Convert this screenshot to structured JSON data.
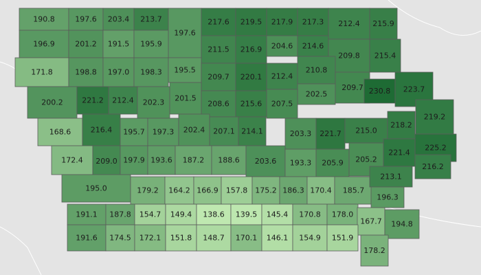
{
  "counties": [
    {
      "v": "190.8"
    },
    {
      "v": "197.6"
    },
    {
      "v": "203.4"
    },
    {
      "v": "213.7"
    },
    {
      "v": "197.6"
    },
    {
      "v": "217.6"
    },
    {
      "v": "219.5"
    },
    {
      "v": "217.9"
    },
    {
      "v": "217.3"
    },
    {
      "v": "212.4"
    },
    {
      "v": "215.9"
    },
    {
      "v": "196.9"
    },
    {
      "v": "201.2"
    },
    {
      "v": "191.5"
    },
    {
      "v": "195.9"
    },
    {
      "v": "211.5"
    },
    {
      "v": "216.9"
    },
    {
      "v": "204.6"
    },
    {
      "v": "214.6"
    },
    {
      "v": "209.8"
    },
    {
      "v": "215.4"
    },
    {
      "v": "171.8"
    },
    {
      "v": "198.8"
    },
    {
      "v": "197.0"
    },
    {
      "v": "198.3"
    },
    {
      "v": "195.5"
    },
    {
      "v": "209.7"
    },
    {
      "v": "220.1"
    },
    {
      "v": "212.4"
    },
    {
      "v": "210.8"
    },
    {
      "v": "202.5"
    },
    {
      "v": "209.7"
    },
    {
      "v": "230.8"
    },
    {
      "v": "223.7"
    },
    {
      "v": "200.2"
    },
    {
      "v": "221.2"
    },
    {
      "v": "212.4"
    },
    {
      "v": "202.3"
    },
    {
      "v": "201.5"
    },
    {
      "v": "208.6"
    },
    {
      "v": "215.6"
    },
    {
      "v": "207.5"
    },
    {
      "v": "219.2"
    },
    {
      "v": "168.6"
    },
    {
      "v": "216.4"
    },
    {
      "v": "195.7"
    },
    {
      "v": "197.3"
    },
    {
      "v": "202.4"
    },
    {
      "v": "207.1"
    },
    {
      "v": "214.1"
    },
    {
      "v": "203.3"
    },
    {
      "v": "221.7"
    },
    {
      "v": "215.0"
    },
    {
      "v": "218.2"
    },
    {
      "v": "225.2"
    },
    {
      "v": "172.4"
    },
    {
      "v": "209.0"
    },
    {
      "v": "197.9"
    },
    {
      "v": "193.6"
    },
    {
      "v": "187.2"
    },
    {
      "v": "188.6"
    },
    {
      "v": "203.6"
    },
    {
      "v": "193.3"
    },
    {
      "v": "205.9"
    },
    {
      "v": "205.2"
    },
    {
      "v": "221.4"
    },
    {
      "v": "216.2"
    },
    {
      "v": "195.0"
    },
    {
      "v": "179.2"
    },
    {
      "v": "164.2"
    },
    {
      "v": "166.9"
    },
    {
      "v": "157.8"
    },
    {
      "v": "175.2"
    },
    {
      "v": "186.3"
    },
    {
      "v": "170.4"
    },
    {
      "v": "185.7"
    },
    {
      "v": "213.1"
    },
    {
      "v": "191.1"
    },
    {
      "v": "187.8"
    },
    {
      "v": "154.7"
    },
    {
      "v": "149.4"
    },
    {
      "v": "138.6"
    },
    {
      "v": "139.5"
    },
    {
      "v": "145.4"
    },
    {
      "v": "170.8"
    },
    {
      "v": "178.0"
    },
    {
      "v": "196.3"
    },
    {
      "v": "167.7"
    },
    {
      "v": "194.8"
    },
    {
      "v": "191.6"
    },
    {
      "v": "174.5"
    },
    {
      "v": "172.1"
    },
    {
      "v": "151.8"
    },
    {
      "v": "148.7"
    },
    {
      "v": "170.1"
    },
    {
      "v": "146.1"
    },
    {
      "v": "154.9"
    },
    {
      "v": "151.9"
    },
    {
      "v": "178.2"
    }
  ],
  "colors": {
    "background": "#e6e6e6",
    "low": "#bfe8b0",
    "high": "#1e6b34",
    "county_border": "#5b5b5b",
    "state_border": "#ffffff"
  }
}
